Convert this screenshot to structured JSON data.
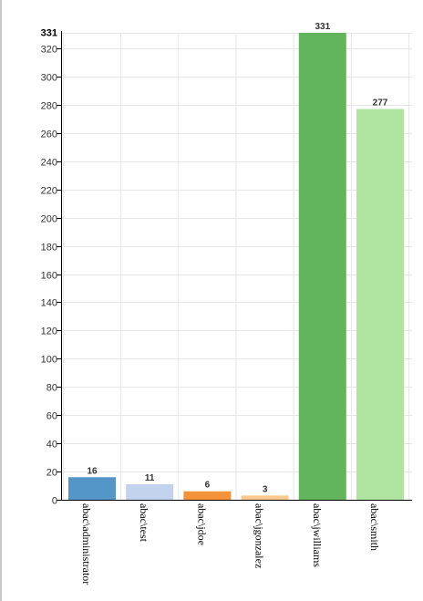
{
  "chart_data": {
    "type": "bar",
    "categories": [
      "abac\\administrator",
      "abac\\test",
      "abac\\jdoe",
      "abac\\jgonzalez",
      "abac\\jwilliams",
      "abac\\smith"
    ],
    "values": [
      16,
      11,
      6,
      3,
      331,
      277
    ],
    "colors": [
      "#5596c8",
      "#c3d3ee",
      "#f5933a",
      "#fbc98f",
      "#62b55c",
      "#afe3a0"
    ],
    "ylim": [
      0,
      331
    ],
    "yticks": [
      0,
      20,
      40,
      60,
      80,
      100,
      120,
      140,
      160,
      180,
      200,
      220,
      240,
      260,
      280,
      300,
      320
    ],
    "ymax_label": "331",
    "grid": true,
    "title": "",
    "xlabel": "",
    "ylabel": ""
  }
}
